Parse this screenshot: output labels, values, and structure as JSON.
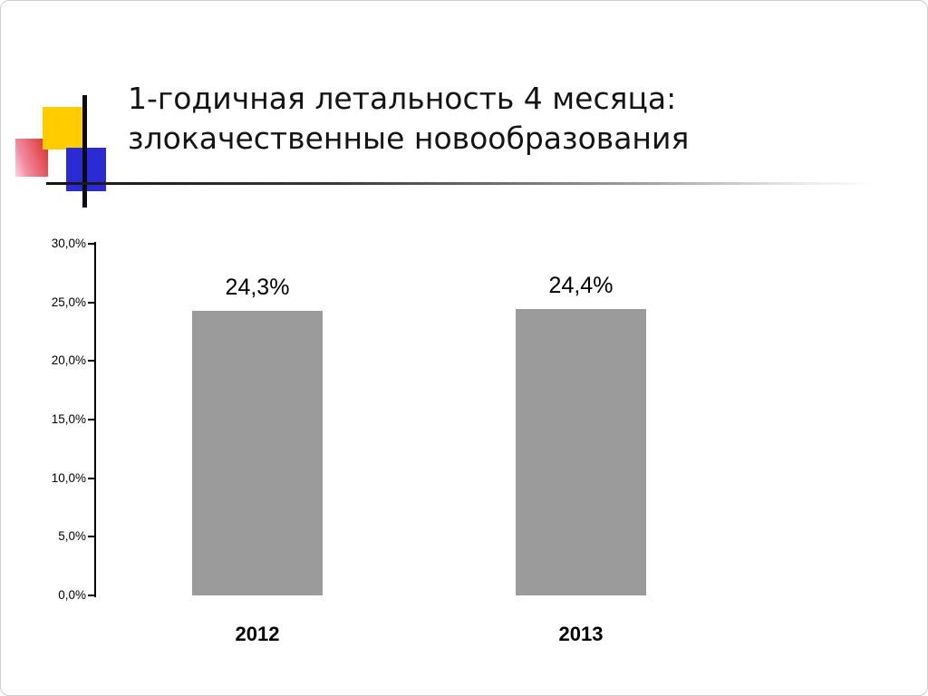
{
  "slide": {
    "title_line1": "1-годичная летальность 4 месяца:",
    "title_line2": "злокачественные новообразования"
  },
  "decoration": {
    "yellow_square_color": "#ffcc00",
    "blue_square_color": "#2b2bd6",
    "red_square_color": "#e03a3a",
    "line_color": "#000000"
  },
  "chart_data": {
    "type": "bar",
    "title": "",
    "xlabel": "",
    "ylabel": "",
    "categories": [
      "2012",
      "2013"
    ],
    "values": [
      24.3,
      24.4
    ],
    "value_labels": [
      "24,3%",
      "24,4%"
    ],
    "ylim": [
      0,
      30
    ],
    "ytick_labels": [
      "30,0%",
      "25,0%",
      "20,0%",
      "15,0%",
      "10,0%",
      "5,0%",
      "0,0%"
    ],
    "bar_color": "#9b9b9b",
    "grid": false,
    "legend": false
  }
}
